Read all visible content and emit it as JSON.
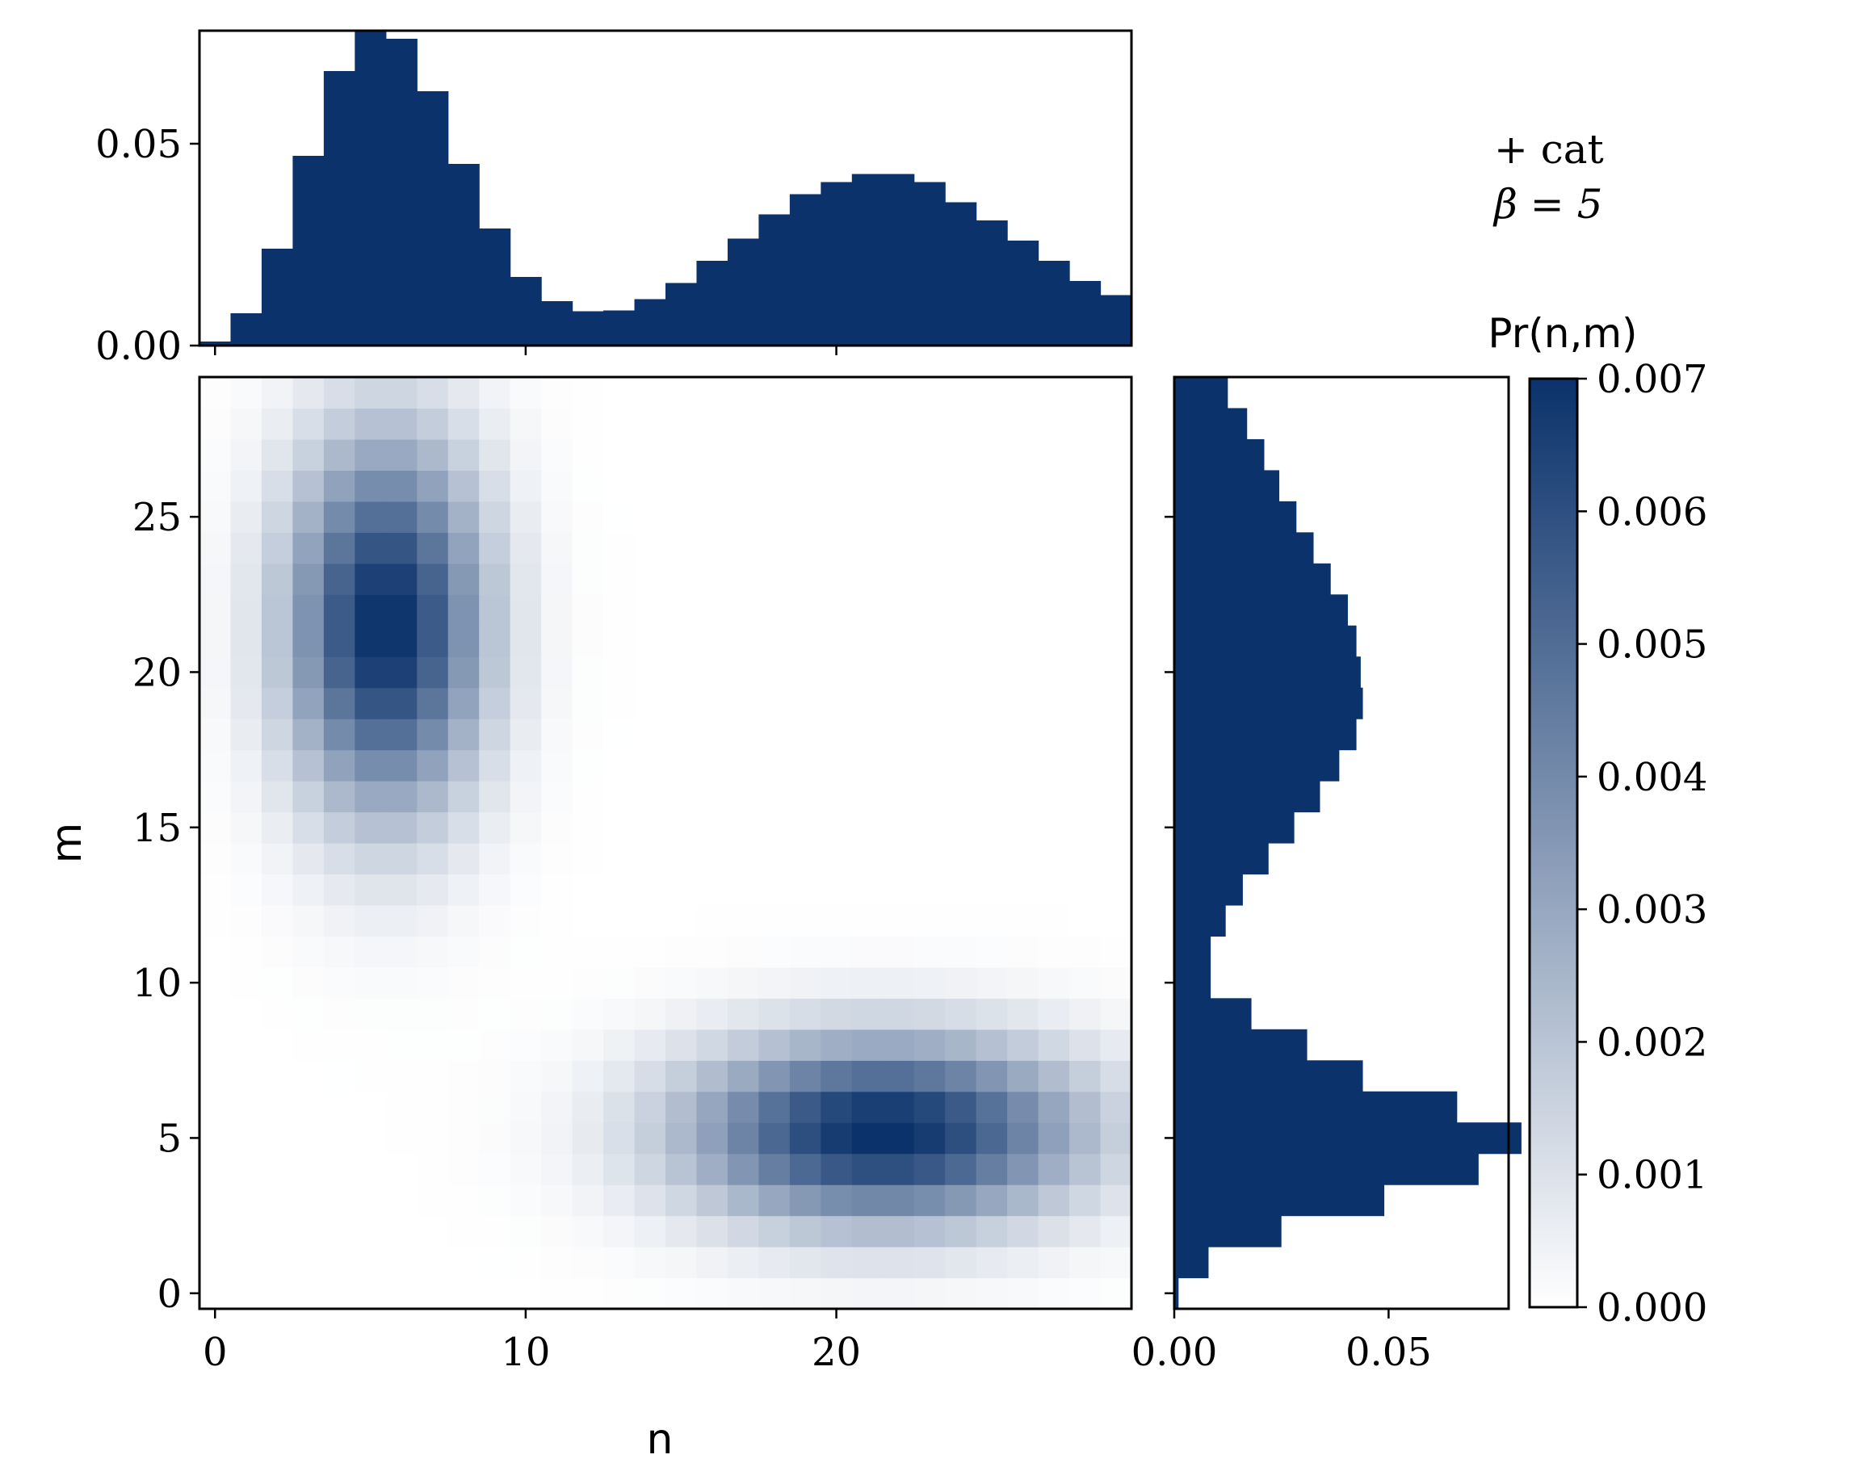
{
  "chart_data": {
    "type": "heatmap",
    "title": "",
    "xlabel": "n",
    "ylabel": "m",
    "colorbar_label": "Pr(n,m)",
    "annotation_lines": [
      "+ cat",
      "β = 5"
    ],
    "colormap": [
      "#ffffff",
      "#0b326b"
    ],
    "bar_color": "#0b326b",
    "grid": false,
    "xlim": [
      -0.5,
      29.5
    ],
    "ylim": [
      -0.5,
      29.5
    ],
    "x_ticks": [
      0,
      10,
      20
    ],
    "y_ticks": [
      0,
      5,
      10,
      15,
      20,
      25
    ],
    "clim": [
      0,
      0.007
    ],
    "colorbar_ticks": [
      0.0,
      0.001,
      0.002,
      0.003,
      0.004,
      0.005,
      0.006,
      0.007
    ],
    "colorbar_tick_labels": [
      "0.000",
      "0.001",
      "0.002",
      "0.003",
      "0.004",
      "0.005",
      "0.006",
      "0.007"
    ],
    "blobs": [
      {
        "center_n": 5.5,
        "center_m": 21.5,
        "peak": 0.0071,
        "width_n": 2.2,
        "width_m": 4.2
      },
      {
        "center_n": 21.5,
        "center_m": 5.2,
        "peak": 0.0071,
        "width_n": 4.4,
        "width_m": 2.1
      }
    ],
    "marginal_n": {
      "ylim": [
        0,
        0.078
      ],
      "y_ticks": [
        0.0,
        0.05
      ],
      "y_tick_labels": [
        "0.00",
        "0.05"
      ],
      "bins": [
        0,
        1,
        2,
        3,
        4,
        5,
        6,
        7,
        8,
        9,
        10,
        11,
        12,
        13,
        14,
        15,
        16,
        17,
        18,
        19,
        20,
        21,
        22,
        23,
        24,
        25,
        26,
        27,
        28,
        29
      ],
      "values": [
        0.001,
        0.008,
        0.024,
        0.047,
        0.068,
        0.078,
        0.076,
        0.063,
        0.045,
        0.029,
        0.017,
        0.011,
        0.0085,
        0.0087,
        0.0115,
        0.0155,
        0.021,
        0.0265,
        0.0325,
        0.0375,
        0.0405,
        0.0425,
        0.0425,
        0.0405,
        0.0355,
        0.031,
        0.026,
        0.021,
        0.016,
        0.0125
      ]
    },
    "marginal_m": {
      "xlim": [
        0,
        0.078
      ],
      "x_ticks": [
        0.0,
        0.05
      ],
      "x_tick_labels": [
        "0.00",
        "0.05"
      ],
      "bins": [
        0,
        1,
        2,
        3,
        4,
        5,
        6,
        7,
        8,
        9,
        10,
        11,
        12,
        13,
        14,
        15,
        16,
        17,
        18,
        19,
        20,
        21,
        22,
        23,
        24,
        25,
        26,
        27,
        28,
        29
      ],
      "values": [
        0.001,
        0.008,
        0.025,
        0.049,
        0.071,
        0.081,
        0.066,
        0.044,
        0.031,
        0.018,
        0.0085,
        0.0085,
        0.012,
        0.016,
        0.022,
        0.028,
        0.034,
        0.0385,
        0.0425,
        0.044,
        0.0435,
        0.0425,
        0.0405,
        0.0365,
        0.0325,
        0.0285,
        0.0245,
        0.021,
        0.017,
        0.0125
      ]
    }
  }
}
